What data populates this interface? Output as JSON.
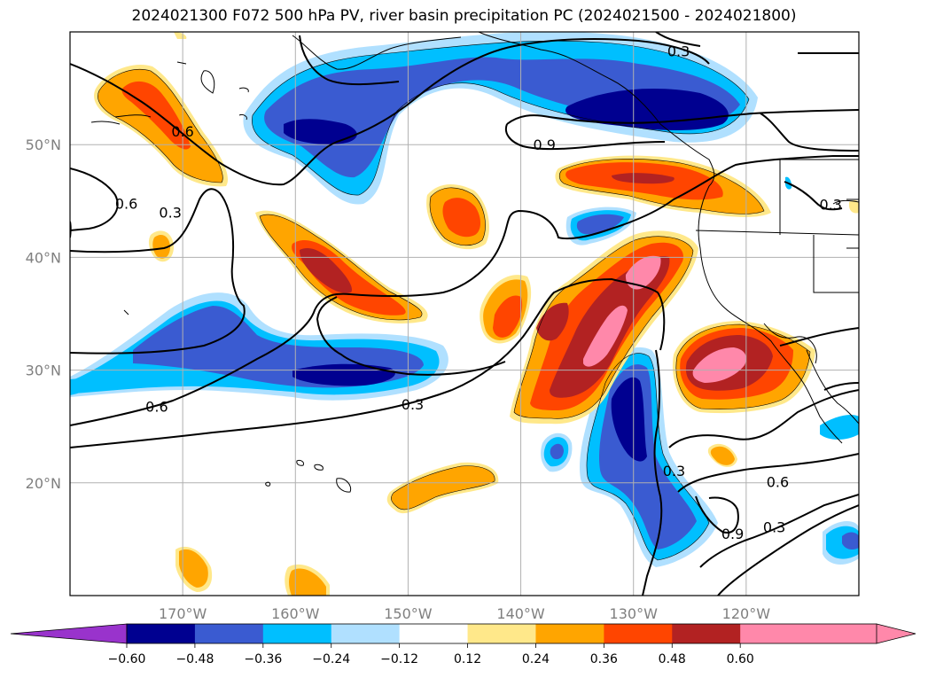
{
  "title": "2024021300 F072 500 hPa PV, river basin precipitation PC (2024021500 - 2024021800)",
  "map": {
    "lon_range": [
      -180,
      -110
    ],
    "lat_range": [
      10,
      60
    ],
    "lat_ticks": [
      {
        "lat": 50,
        "label": "50°N"
      },
      {
        "lat": 40,
        "label": "40°N"
      },
      {
        "lat": 30,
        "label": "30°N"
      },
      {
        "lat": 20,
        "label": "20°N"
      }
    ],
    "lon_ticks": [
      {
        "lon": -170,
        "label": "170°W"
      },
      {
        "lon": -160,
        "label": "160°W"
      },
      {
        "lon": -150,
        "label": "150°W"
      },
      {
        "lon": -140,
        "label": "140°W"
      },
      {
        "lon": -130,
        "label": "130°W"
      },
      {
        "lon": -120,
        "label": "120°W"
      }
    ],
    "contour_labels": [
      {
        "text": "0.3",
        "lon": -126.0,
        "lat": 58.3
      },
      {
        "text": "0.6",
        "lon": -170.0,
        "lat": 51.2
      },
      {
        "text": "0.9",
        "lon": -137.9,
        "lat": 50.0
      },
      {
        "text": "0.6",
        "lon": -175.0,
        "lat": 44.8
      },
      {
        "text": "0.3",
        "lon": -171.1,
        "lat": 44.0
      },
      {
        "text": "0.3",
        "lon": -112.5,
        "lat": 44.7
      },
      {
        "text": "0.6",
        "lon": -172.3,
        "lat": 26.8
      },
      {
        "text": "0.3",
        "lon": -149.6,
        "lat": 27.0
      },
      {
        "text": "0.3",
        "lon": -126.4,
        "lat": 21.1
      },
      {
        "text": "0.6",
        "lon": -117.2,
        "lat": 20.1
      },
      {
        "text": "0.9",
        "lon": -121.2,
        "lat": 15.5
      },
      {
        "text": "0.3",
        "lon": -117.5,
        "lat": 16.1
      }
    ]
  },
  "colorbar": {
    "ticks": [
      "−0.60",
      "−0.48",
      "−0.36",
      "−0.24",
      "−0.12",
      "0.12",
      "0.24",
      "0.36",
      "0.48",
      "0.60"
    ],
    "colors": [
      "#9933cc",
      "#000090",
      "#3a5bd1",
      "#00bfff",
      "#b0e0ff",
      "#ffffff",
      "#ffe88a",
      "#ffa500",
      "#ff4500",
      "#b22222",
      "#ff88aa"
    ]
  },
  "legend_colors": {
    "pos1": "#ffe88a",
    "pos2": "#ffa500",
    "pos3": "#ff4500",
    "pos4": "#b22222",
    "pos5": "#ff88aa",
    "neg1": "#b0e0ff",
    "neg2": "#00bfff",
    "neg3": "#3a5bd1",
    "neg4": "#000090"
  }
}
